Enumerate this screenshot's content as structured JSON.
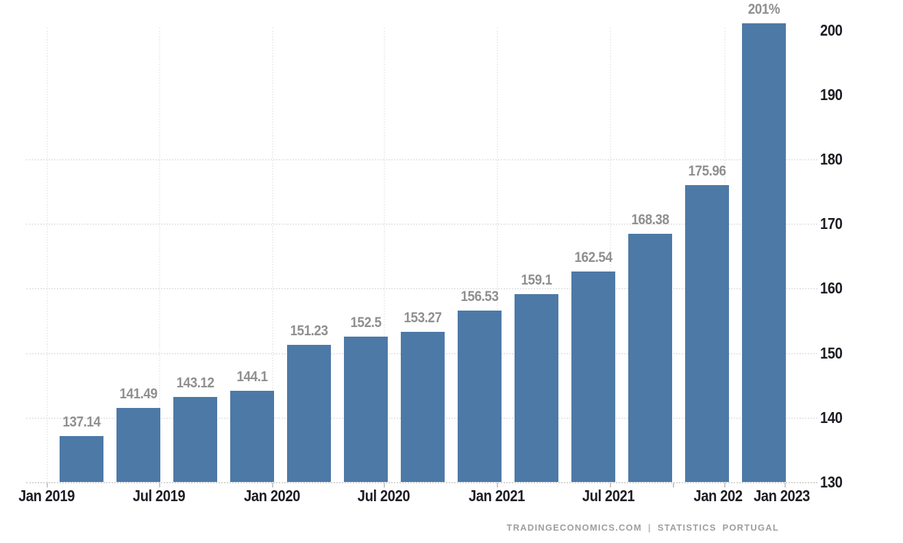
{
  "chart_data": {
    "type": "bar",
    "title": "",
    "xlabel": "",
    "ylabel": "",
    "values": [
      137.14,
      141.49,
      143.12,
      144.1,
      151.23,
      152.5,
      153.27,
      156.53,
      159.1,
      162.54,
      168.38,
      175.96,
      201
    ],
    "value_labels": [
      "137.14",
      "141.49",
      "143.12",
      "144.1",
      "151.23",
      "152.5",
      "153.27",
      "156.53",
      "159.1",
      "162.54",
      "168.38",
      "175.96",
      "201%"
    ],
    "x_tick_labels": [
      "Jan 2019",
      "Jul 2019",
      "Jan 2020",
      "Jul 2020",
      "Jan 2021",
      "Jul 2021",
      "Jan 202",
      "Jan 2023"
    ],
    "y_tick_labels": [
      "130",
      "140",
      "150",
      "160",
      "170",
      "180",
      "190",
      "200"
    ],
    "y_ticks": [
      130,
      140,
      150,
      160,
      170,
      180,
      190,
      200
    ],
    "gridline_values": [
      140,
      150,
      160,
      170,
      180
    ],
    "ylim": [
      130,
      205
    ],
    "grid": "dotted",
    "legend": "none",
    "colors": {
      "bar": "#4d79a7",
      "value_label": "#8f8f8f",
      "axis_label": "#1f1d24",
      "grid_h": "#e6e6e6",
      "grid_v": "#efefef",
      "baseline": "#d4d4d4"
    }
  },
  "footer": {
    "source_left": "TRADINGECONOMICS.COM",
    "separator": "|",
    "source_right": "STATISTICS PORTUGAL"
  }
}
